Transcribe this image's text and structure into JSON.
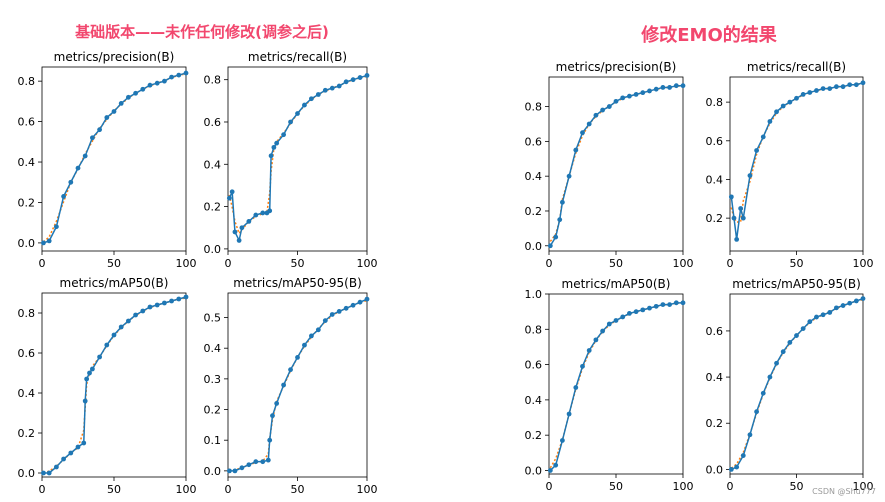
{
  "left_group": {
    "heading": "基础版本——未作任何修改(调参之后)",
    "color": "#f2476e"
  },
  "right_group": {
    "heading": "修改EMO的结果",
    "color": "#f2476e"
  },
  "watermark": "CSDN @Shu777",
  "series_color": "#1f77b4",
  "smooth_color": "#ff7f0e",
  "chart_data": [
    {
      "type": "line",
      "group": "left",
      "title": "metrics/precision(B)",
      "xlim": [
        0,
        100
      ],
      "ylim": [
        -0.04,
        0.87
      ],
      "xticks": [
        0,
        50,
        100
      ],
      "yticks": [
        0.0,
        0.2,
        0.4,
        0.6,
        0.8
      ],
      "x": [
        1,
        5,
        10,
        15,
        20,
        25,
        30,
        35,
        40,
        45,
        50,
        55,
        60,
        65,
        70,
        75,
        80,
        85,
        90,
        95,
        100
      ],
      "y": [
        0.0,
        0.01,
        0.08,
        0.23,
        0.3,
        0.37,
        0.43,
        0.52,
        0.56,
        0.62,
        0.65,
        0.69,
        0.72,
        0.74,
        0.76,
        0.78,
        0.79,
        0.8,
        0.82,
        0.83,
        0.84
      ]
    },
    {
      "type": "line",
      "group": "left",
      "title": "metrics/recall(B)",
      "xlim": [
        0,
        100
      ],
      "ylim": [
        -0.01,
        0.86
      ],
      "xticks": [
        0,
        50,
        100
      ],
      "yticks": [
        0.0,
        0.2,
        0.4,
        0.6,
        0.8
      ],
      "x": [
        1,
        3,
        5,
        8,
        10,
        15,
        20,
        25,
        28,
        30,
        31,
        33,
        35,
        40,
        45,
        50,
        55,
        60,
        65,
        70,
        75,
        80,
        85,
        90,
        95,
        100
      ],
      "y": [
        0.24,
        0.27,
        0.08,
        0.04,
        0.1,
        0.13,
        0.16,
        0.17,
        0.17,
        0.18,
        0.44,
        0.48,
        0.5,
        0.54,
        0.6,
        0.64,
        0.68,
        0.71,
        0.73,
        0.75,
        0.76,
        0.77,
        0.79,
        0.8,
        0.81,
        0.82
      ]
    },
    {
      "type": "line",
      "group": "left",
      "title": "metrics/mAP50(B)",
      "xlim": [
        0,
        100
      ],
      "ylim": [
        -0.02,
        0.9
      ],
      "xticks": [
        0,
        50,
        100
      ],
      "yticks": [
        0.0,
        0.2,
        0.4,
        0.6,
        0.8
      ],
      "x": [
        1,
        5,
        10,
        15,
        20,
        25,
        29,
        30,
        31,
        33,
        35,
        40,
        45,
        50,
        55,
        60,
        65,
        70,
        75,
        80,
        85,
        90,
        95,
        100
      ],
      "y": [
        0.0,
        0.0,
        0.03,
        0.07,
        0.1,
        0.13,
        0.15,
        0.36,
        0.47,
        0.5,
        0.52,
        0.58,
        0.64,
        0.69,
        0.73,
        0.76,
        0.79,
        0.81,
        0.83,
        0.84,
        0.85,
        0.86,
        0.87,
        0.88
      ]
    },
    {
      "type": "line",
      "group": "left",
      "title": "metrics/mAP50-95(B)",
      "xlim": [
        0,
        100
      ],
      "ylim": [
        -0.02,
        0.58
      ],
      "xticks": [
        0,
        50,
        100
      ],
      "yticks": [
        0.0,
        0.1,
        0.2,
        0.3,
        0.4,
        0.5
      ],
      "x": [
        1,
        5,
        10,
        15,
        20,
        25,
        29,
        30,
        32,
        35,
        40,
        45,
        50,
        55,
        60,
        65,
        70,
        75,
        80,
        85,
        90,
        95,
        100
      ],
      "y": [
        0.0,
        0.0,
        0.01,
        0.02,
        0.03,
        0.03,
        0.035,
        0.1,
        0.18,
        0.22,
        0.28,
        0.33,
        0.37,
        0.41,
        0.44,
        0.46,
        0.49,
        0.51,
        0.52,
        0.53,
        0.54,
        0.55,
        0.56
      ]
    },
    {
      "type": "line",
      "group": "right",
      "title": "metrics/precision(B)",
      "xlim": [
        0,
        100
      ],
      "ylim": [
        -0.03,
        0.97
      ],
      "xticks": [
        0,
        50,
        100
      ],
      "yticks": [
        0.0,
        0.2,
        0.4,
        0.6,
        0.8
      ],
      "x": [
        1,
        5,
        8,
        10,
        15,
        20,
        25,
        30,
        35,
        40,
        45,
        50,
        55,
        60,
        65,
        70,
        75,
        80,
        85,
        90,
        95,
        100
      ],
      "y": [
        0.0,
        0.05,
        0.15,
        0.25,
        0.4,
        0.55,
        0.65,
        0.7,
        0.75,
        0.78,
        0.8,
        0.83,
        0.85,
        0.86,
        0.87,
        0.88,
        0.89,
        0.9,
        0.91,
        0.91,
        0.92,
        0.92
      ]
    },
    {
      "type": "line",
      "group": "right",
      "title": "metrics/recall(B)",
      "xlim": [
        0,
        100
      ],
      "ylim": [
        0.03,
        0.93
      ],
      "xticks": [
        0,
        50,
        100
      ],
      "yticks": [
        0.2,
        0.4,
        0.6,
        0.8
      ],
      "x": [
        1,
        3,
        5,
        8,
        10,
        15,
        20,
        25,
        30,
        35,
        40,
        45,
        50,
        55,
        60,
        65,
        70,
        75,
        80,
        85,
        90,
        95,
        100
      ],
      "y": [
        0.31,
        0.2,
        0.09,
        0.25,
        0.2,
        0.42,
        0.55,
        0.62,
        0.7,
        0.75,
        0.78,
        0.8,
        0.82,
        0.84,
        0.85,
        0.86,
        0.87,
        0.87,
        0.88,
        0.88,
        0.89,
        0.89,
        0.9
      ]
    },
    {
      "type": "line",
      "group": "right",
      "title": "metrics/mAP50(B)",
      "xlim": [
        0,
        100
      ],
      "ylim": [
        -0.02,
        1.0
      ],
      "xticks": [
        0,
        50,
        100
      ],
      "yticks": [
        0.0,
        0.2,
        0.4,
        0.6,
        0.8,
        1.0
      ],
      "x": [
        1,
        5,
        10,
        15,
        20,
        25,
        30,
        35,
        40,
        45,
        50,
        55,
        60,
        65,
        70,
        75,
        80,
        85,
        90,
        95,
        100
      ],
      "y": [
        0.0,
        0.03,
        0.17,
        0.32,
        0.47,
        0.59,
        0.68,
        0.74,
        0.79,
        0.83,
        0.85,
        0.87,
        0.89,
        0.9,
        0.91,
        0.92,
        0.93,
        0.94,
        0.94,
        0.95,
        0.95
      ]
    },
    {
      "type": "line",
      "group": "right",
      "title": "metrics/mAP50-95(B)",
      "xlim": [
        0,
        100
      ],
      "ylim": [
        -0.02,
        0.76
      ],
      "xticks": [
        0,
        50,
        100
      ],
      "yticks": [
        0.0,
        0.2,
        0.4,
        0.6
      ],
      "x": [
        1,
        5,
        10,
        15,
        20,
        25,
        30,
        35,
        40,
        45,
        50,
        55,
        60,
        65,
        70,
        75,
        80,
        85,
        90,
        95,
        100
      ],
      "y": [
        0.0,
        0.01,
        0.06,
        0.15,
        0.25,
        0.33,
        0.4,
        0.46,
        0.51,
        0.55,
        0.58,
        0.61,
        0.64,
        0.66,
        0.67,
        0.68,
        0.7,
        0.71,
        0.72,
        0.73,
        0.74
      ]
    }
  ]
}
